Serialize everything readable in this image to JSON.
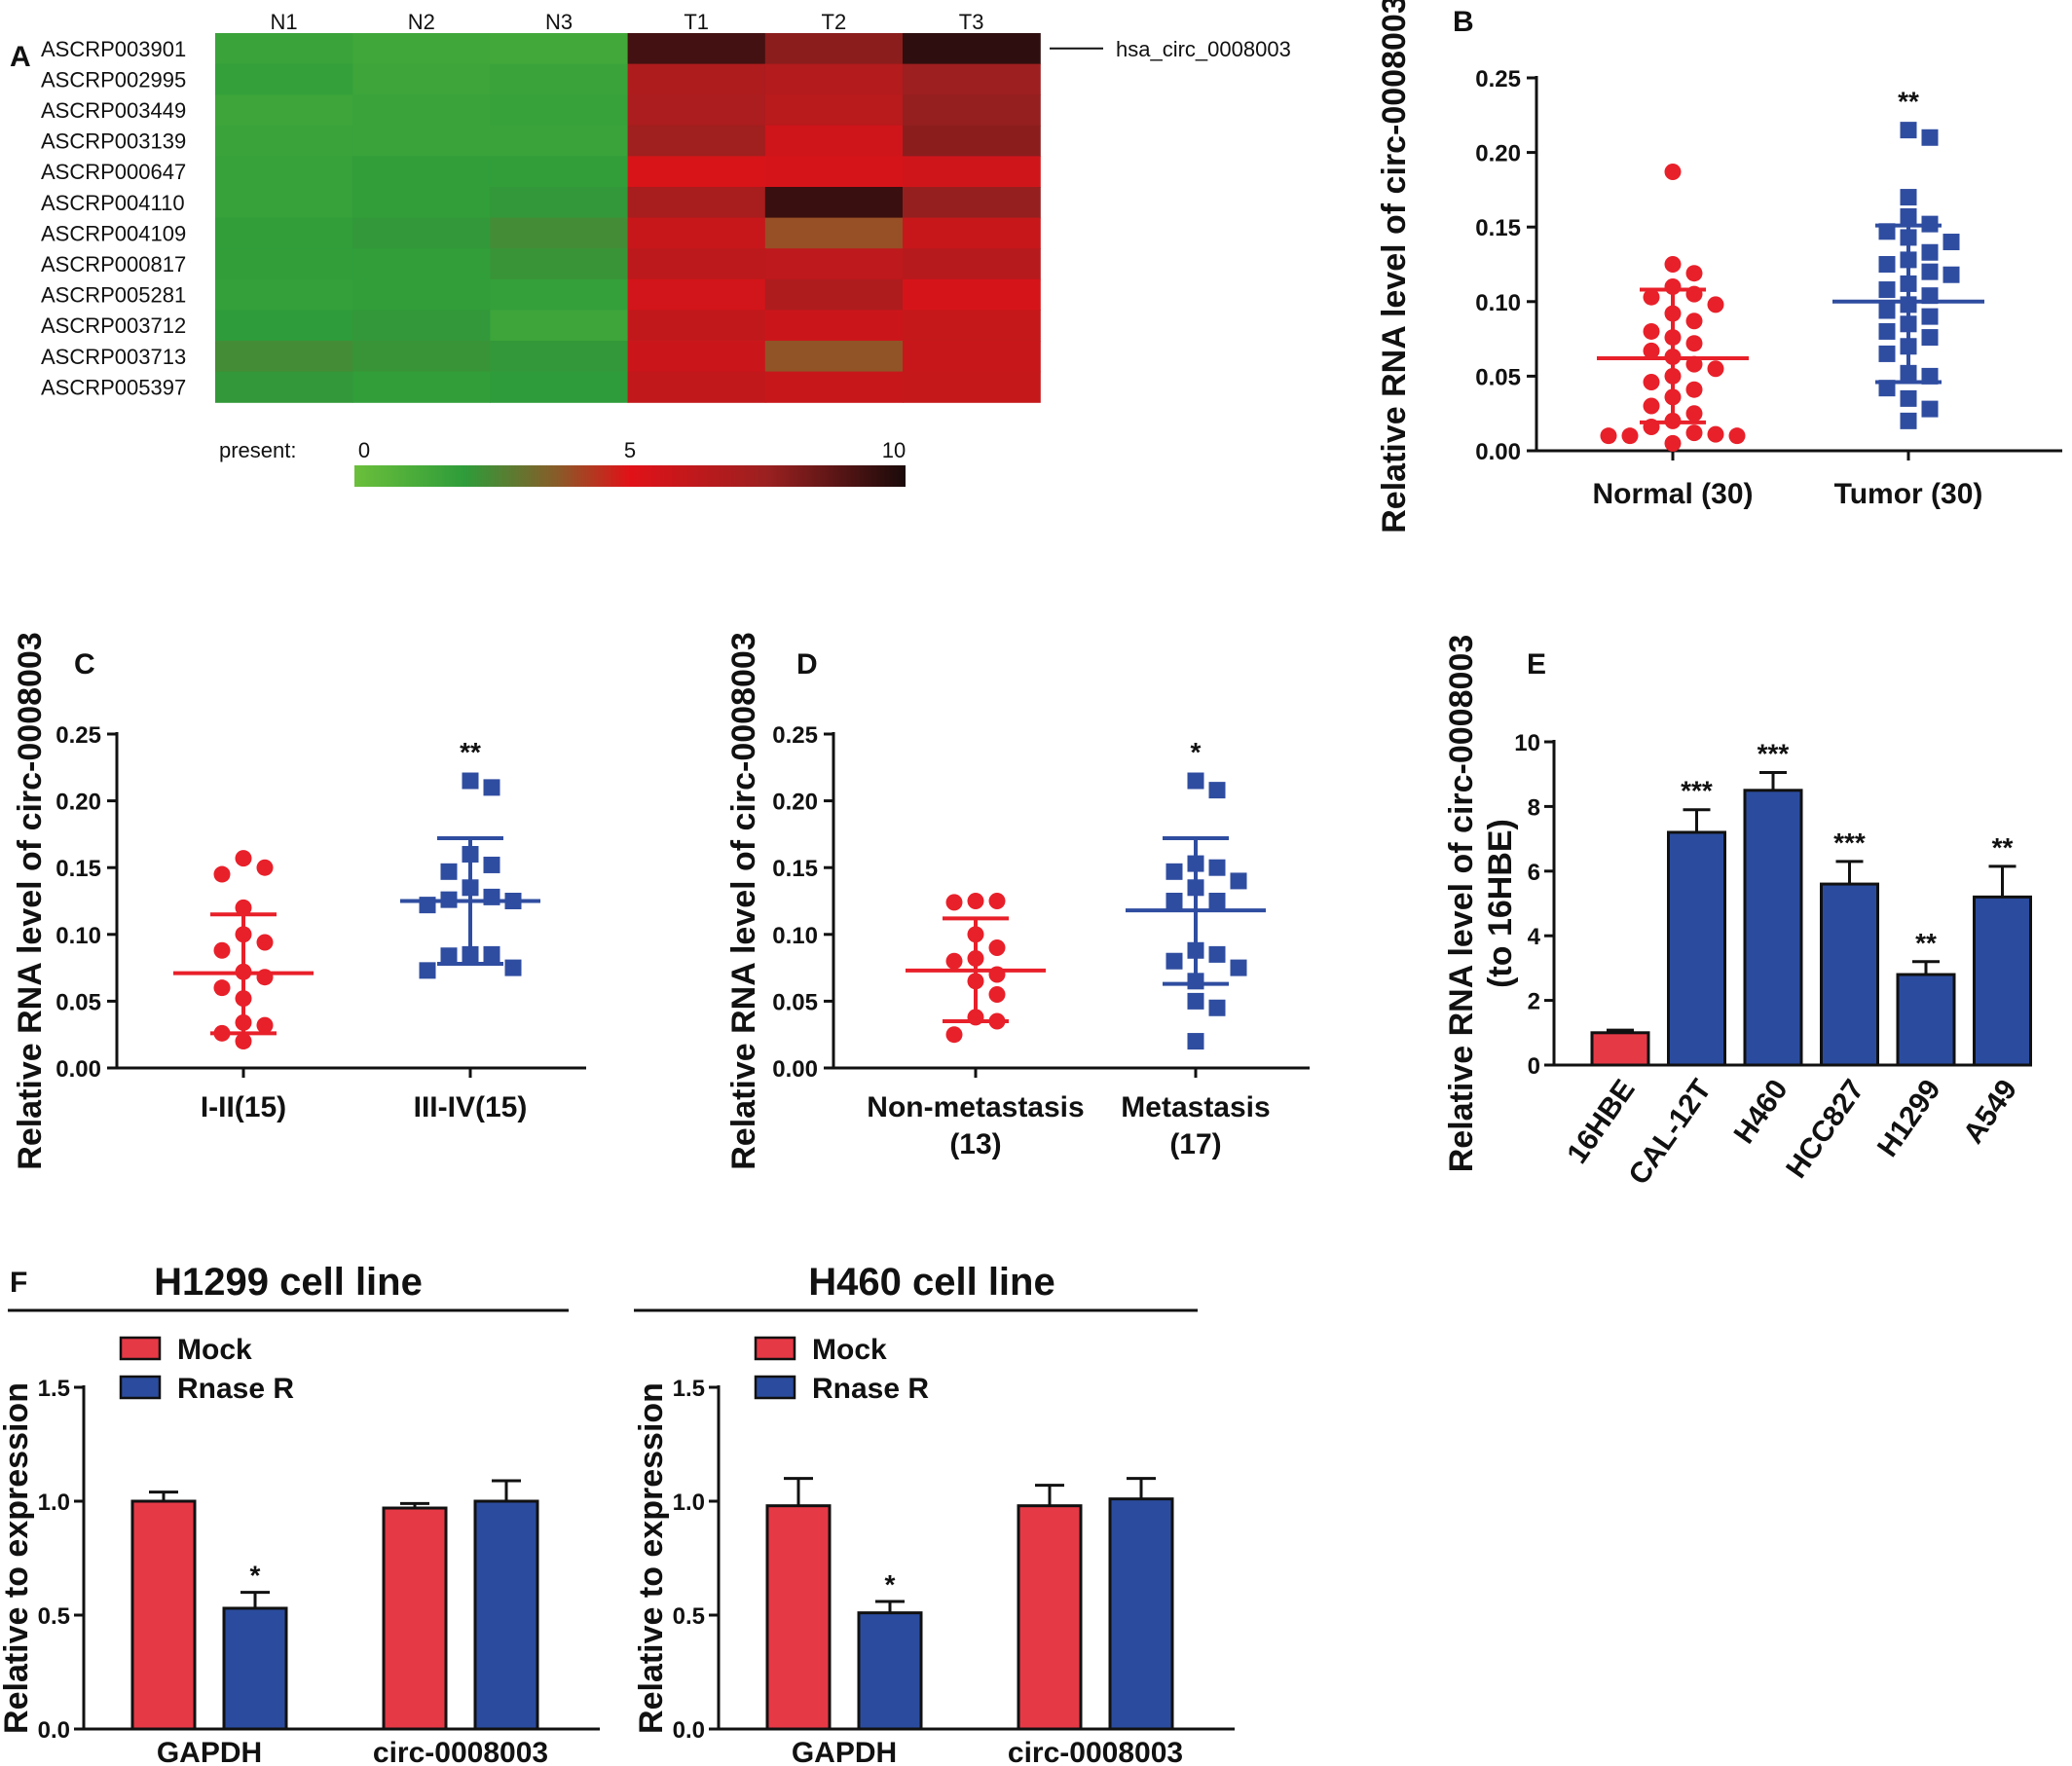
{
  "colors": {
    "red": "#e8202a",
    "blue": "#2f4da0",
    "bar_red": "#e63946",
    "bar_blue": "#2b4c9e",
    "axis": "#111111"
  },
  "chart_data": [
    {
      "panel": "A",
      "type": "heatmap",
      "columns": [
        "N1",
        "N2",
        "N3",
        "T1",
        "T2",
        "T3"
      ],
      "rows": [
        "ASCRP003901",
        "ASCRP002995",
        "ASCRP003449",
        "ASCRP003139",
        "ASCRP000647",
        "ASCRP004110",
        "ASCRP004109",
        "ASCRP000817",
        "ASCRP005281",
        "ASCRP003712",
        "ASCRP003713",
        "ASCRP005397"
      ],
      "values": [
        [
          1.6,
          1.4,
          1.3,
          9.2,
          7.8,
          9.6
        ],
        [
          1.8,
          1.5,
          1.6,
          6.8,
          6.6,
          7.4
        ],
        [
          1.5,
          1.6,
          1.7,
          6.9,
          6.4,
          7.6
        ],
        [
          1.6,
          1.6,
          1.6,
          7.3,
          5.6,
          7.8
        ],
        [
          1.7,
          1.9,
          1.9,
          5.3,
          5.4,
          5.6
        ],
        [
          1.7,
          1.9,
          2.1,
          7.0,
          9.4,
          7.6
        ],
        [
          1.9,
          2.1,
          2.4,
          5.9,
          3.9,
          5.9
        ],
        [
          1.9,
          1.9,
          2.2,
          6.3,
          6.2,
          6.5
        ],
        [
          1.8,
          1.9,
          1.8,
          5.5,
          6.8,
          5.4
        ],
        [
          2.0,
          2.1,
          1.5,
          6.1,
          5.8,
          6.0
        ],
        [
          2.4,
          2.2,
          2.1,
          5.8,
          3.8,
          5.9
        ],
        [
          2.1,
          1.9,
          2.0,
          6.1,
          5.9,
          6.0
        ]
      ],
      "annotation": {
        "row": "ASCRP003901",
        "label": "hsa_circ_0008003"
      },
      "colorbar": {
        "label": "present:",
        "ticks": [
          "0",
          "5",
          "10"
        ],
        "range": [
          0,
          10
        ]
      }
    },
    {
      "panel": "B",
      "type": "scatter",
      "ylabel": "Relative RNA level of circ-0008003",
      "ylim": [
        0,
        0.25
      ],
      "yticks": [
        "0.00",
        "0.05",
        "0.10",
        "0.15",
        "0.20",
        "0.25"
      ],
      "groups": [
        {
          "name": "Normal (30)",
          "marker": "circle",
          "color": "red",
          "mean": 0.062,
          "sd_low": 0.019,
          "sd_high": 0.108,
          "significance": "",
          "values": [
            0.187,
            0.125,
            0.119,
            0.11,
            0.105,
            0.103,
            0.098,
            0.092,
            0.087,
            0.08,
            0.076,
            0.072,
            0.067,
            0.063,
            0.058,
            0.055,
            0.05,
            0.046,
            0.041,
            0.036,
            0.03,
            0.025,
            0.02,
            0.016,
            0.012,
            0.011,
            0.01,
            0.01,
            0.01,
            0.005
          ]
        },
        {
          "name": "Tumor (30)",
          "marker": "square",
          "color": "blue",
          "mean": 0.1,
          "sd_low": 0.046,
          "sd_high": 0.151,
          "significance": "**",
          "values": [
            0.215,
            0.21,
            0.17,
            0.157,
            0.152,
            0.147,
            0.143,
            0.14,
            0.133,
            0.128,
            0.125,
            0.12,
            0.118,
            0.112,
            0.108,
            0.104,
            0.098,
            0.094,
            0.09,
            0.085,
            0.08,
            0.076,
            0.07,
            0.065,
            0.052,
            0.05,
            0.042,
            0.035,
            0.028,
            0.02
          ]
        }
      ]
    },
    {
      "panel": "C",
      "type": "scatter",
      "ylabel": "Relative RNA level of circ-0008003",
      "ylim": [
        0,
        0.25
      ],
      "yticks": [
        "0.00",
        "0.05",
        "0.10",
        "0.15",
        "0.20",
        "0.25"
      ],
      "groups": [
        {
          "name": "I-II(15)",
          "marker": "circle",
          "color": "red",
          "mean": 0.071,
          "sd_low": 0.026,
          "sd_high": 0.115,
          "significance": "",
          "values": [
            0.157,
            0.15,
            0.145,
            0.12,
            0.1,
            0.094,
            0.088,
            0.072,
            0.068,
            0.06,
            0.052,
            0.034,
            0.032,
            0.026,
            0.02
          ]
        },
        {
          "name": "III-IV(15)",
          "marker": "square",
          "color": "blue",
          "mean": 0.125,
          "sd_low": 0.078,
          "sd_high": 0.172,
          "significance": "**",
          "values": [
            0.215,
            0.21,
            0.16,
            0.152,
            0.147,
            0.135,
            0.128,
            0.126,
            0.125,
            0.122,
            0.085,
            0.085,
            0.084,
            0.075,
            0.073
          ]
        }
      ]
    },
    {
      "panel": "D",
      "type": "scatter",
      "ylabel": "Relative RNA level of circ-0008003",
      "ylim": [
        0,
        0.25
      ],
      "yticks": [
        "0.00",
        "0.05",
        "0.10",
        "0.15",
        "0.20",
        "0.25"
      ],
      "groups": [
        {
          "name": "Non-metastasis\n(13)",
          "marker": "circle",
          "color": "red",
          "mean": 0.073,
          "sd_low": 0.035,
          "sd_high": 0.112,
          "significance": "",
          "values": [
            0.125,
            0.125,
            0.124,
            0.1,
            0.09,
            0.082,
            0.08,
            0.07,
            0.065,
            0.055,
            0.038,
            0.035,
            0.025
          ]
        },
        {
          "name": "Metastasis\n(17)",
          "marker": "square",
          "color": "blue",
          "mean": 0.118,
          "sd_low": 0.063,
          "sd_high": 0.172,
          "significance": "*",
          "values": [
            0.215,
            0.208,
            0.153,
            0.15,
            0.147,
            0.14,
            0.135,
            0.125,
            0.125,
            0.088,
            0.085,
            0.08,
            0.075,
            0.065,
            0.05,
            0.045,
            0.02
          ]
        }
      ]
    },
    {
      "panel": "E",
      "type": "bar",
      "ylabel": "Relative RNA level of circ-0008003",
      "ylabel2": "(to 16HBE)",
      "ylim": [
        0,
        10
      ],
      "yticks": [
        "0",
        "2",
        "4",
        "6",
        "8",
        "10"
      ],
      "categories": [
        "16HBE",
        "CAL-12T",
        "H460",
        "HCC827",
        "H1299",
        "A549"
      ],
      "values": [
        1.0,
        7.2,
        8.5,
        5.6,
        2.8,
        5.2
      ],
      "errors": [
        0.08,
        0.7,
        0.55,
        0.7,
        0.4,
        0.95
      ],
      "colors": [
        "red",
        "blue",
        "blue",
        "blue",
        "blue",
        "blue"
      ],
      "significance": [
        "",
        "***",
        "***",
        "***",
        "**",
        "**"
      ]
    },
    {
      "panel": "F",
      "type": "bar",
      "title": "H1299 cell line",
      "ylabel": "Relative to expression",
      "ylim": [
        0,
        1.5
      ],
      "yticks": [
        "0.0",
        "0.5",
        "1.0",
        "1.5"
      ],
      "categories": [
        "GAPDH",
        "circ-0008003"
      ],
      "series": [
        {
          "name": "Mock",
          "color": "red",
          "values": [
            1.0,
            0.97
          ],
          "errors": [
            0.04,
            0.02
          ]
        },
        {
          "name": "Rnase R",
          "color": "blue",
          "values": [
            0.53,
            1.0
          ],
          "errors": [
            0.07,
            0.09
          ]
        }
      ],
      "significance": [
        "*",
        ""
      ]
    },
    {
      "panel": "",
      "type": "bar",
      "title": "H460 cell line",
      "ylabel": "Relative to expression",
      "ylim": [
        0,
        1.5
      ],
      "yticks": [
        "0.0",
        "0.5",
        "1.0",
        "1.5"
      ],
      "categories": [
        "GAPDH",
        "circ-0008003"
      ],
      "series": [
        {
          "name": "Mock",
          "color": "red",
          "values": [
            0.98,
            0.98
          ],
          "errors": [
            0.12,
            0.09
          ]
        },
        {
          "name": "Rnase R",
          "color": "blue",
          "values": [
            0.51,
            1.01
          ],
          "errors": [
            0.05,
            0.09
          ]
        }
      ],
      "significance": [
        "*",
        ""
      ]
    }
  ]
}
